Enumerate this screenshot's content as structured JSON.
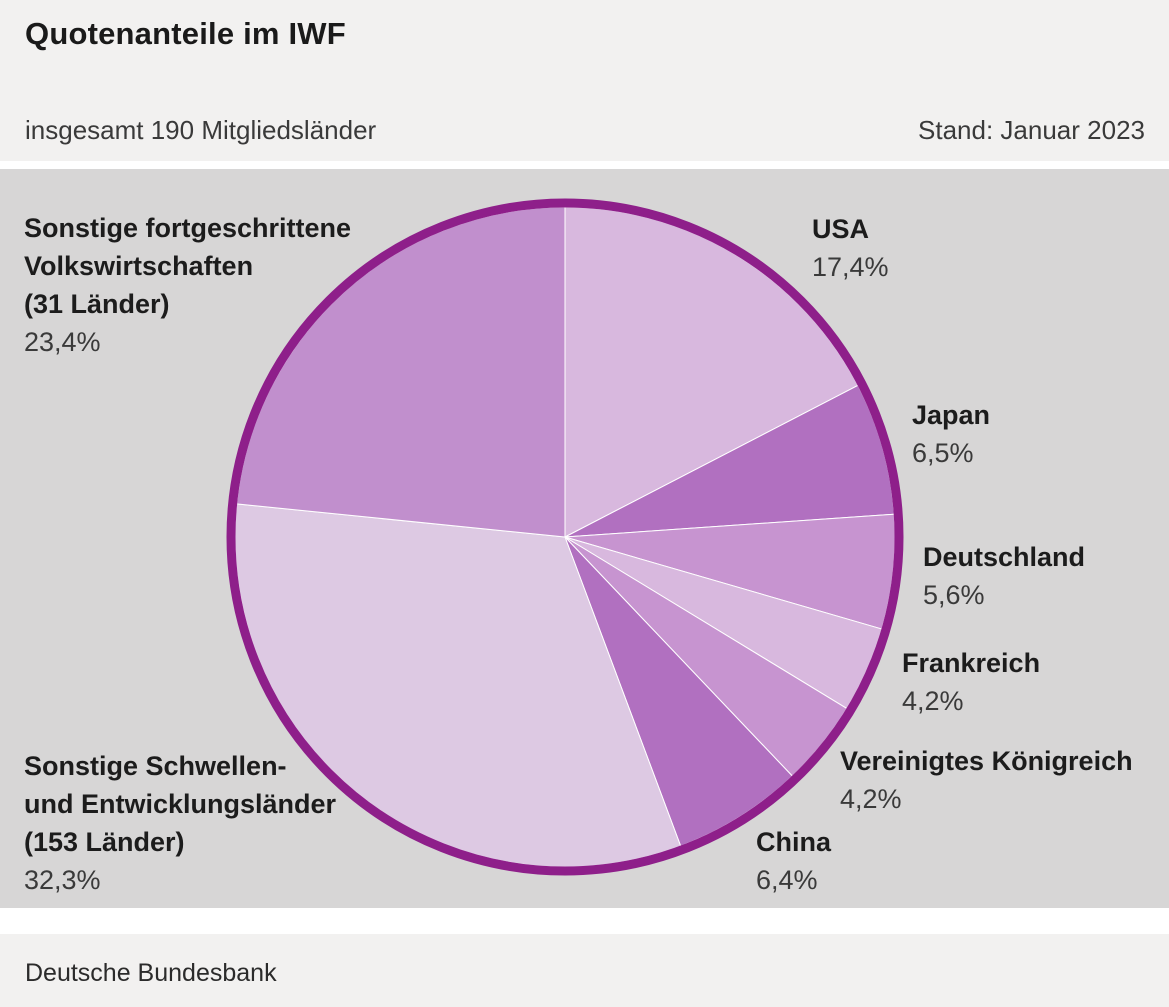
{
  "header": {
    "title": "Quotenanteile im IWF",
    "subtitle": "insgesamt 190 Mitgliedsländer",
    "date": "Stand: Januar 2023"
  },
  "footer": {
    "source": "Deutsche Bundesbank"
  },
  "chart_data": {
    "type": "pie",
    "title": "Quotenanteile im IWF",
    "subtitle": "insgesamt 190 Mitgliedsländer",
    "as_of": "Stand: Januar 2023",
    "source": "Deutsche Bundesbank",
    "unit": "%",
    "total_members": 190,
    "direction": "clockwise",
    "start_angle": "12-o-clock",
    "ring_color": "#8e1f8a",
    "slices": [
      {
        "label": "USA",
        "value": 17.4,
        "display": "17,4%",
        "color": "#d8b8de"
      },
      {
        "label": "Japan",
        "value": 6.5,
        "display": "6,5%",
        "color": "#b170c0"
      },
      {
        "label": "Deutschland",
        "value": 5.6,
        "display": "5,6%",
        "color": "#c794d0"
      },
      {
        "label": "Frankreich",
        "value": 4.2,
        "display": "4,2%",
        "color": "#d8b8de"
      },
      {
        "label": "Vereinigtes Königreich",
        "value": 4.2,
        "display": "4,2%",
        "color": "#c794d0"
      },
      {
        "label": "China",
        "value": 6.4,
        "display": "6,4%",
        "color": "#b170c0"
      },
      {
        "label": "Sonstige Schwellen- und Entwicklungsländer (153 Länder)",
        "value": 32.3,
        "display": "32,3%",
        "color": "#ddc9e3"
      },
      {
        "label": "Sonstige fortgeschrittene Volkswirtschaften (31 Länder)",
        "value": 23.4,
        "display": "23,4%",
        "color": "#c18fcd"
      }
    ]
  },
  "callouts": {
    "usa": {
      "line1": "USA",
      "pct": "17,4%"
    },
    "japan": {
      "line1": "Japan",
      "pct": "6,5%"
    },
    "deutschland": {
      "line1": "Deutschland",
      "pct": "5,6%"
    },
    "frankreich": {
      "line1": "Frankreich",
      "pct": "4,2%"
    },
    "uk": {
      "line1": "Vereinigtes Königreich",
      "pct": "4,2%"
    },
    "china": {
      "line1": "China",
      "pct": "6,4%"
    },
    "advanced": {
      "line1": "Sonstige fortgeschrittene",
      "line2": "Volkswirtschaften",
      "line3": "(31 Länder)",
      "pct": "23,4%"
    },
    "emerging": {
      "line1": "Sonstige Schwellen-",
      "line2": "und Entwicklungsländer",
      "line3": "(153 Länder)",
      "pct": "32,3%"
    }
  }
}
